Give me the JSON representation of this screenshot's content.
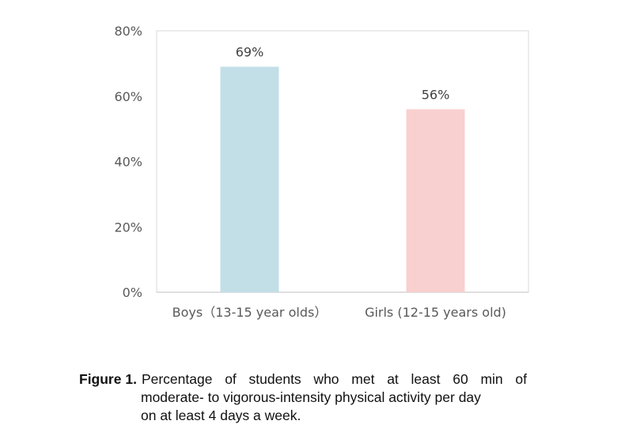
{
  "chart_data": {
    "type": "bar",
    "categories": [
      "Boys（13-15 year olds）",
      "Girls (12-15 years old)"
    ],
    "values": [
      69,
      56
    ],
    "data_labels": [
      "69%",
      "56%"
    ],
    "y_ticks": [
      "0%",
      "20%",
      "40%",
      "60%",
      "80%"
    ],
    "ylim": [
      0,
      80
    ],
    "grid": false,
    "colors": [
      "#c2dfe8",
      "#f8d0cf"
    ]
  },
  "caption": {
    "label": "Figure 1.",
    "line1": "Percentage of students who met at least 60 min of",
    "line2": "moderate- to vigorous-intensity physical activity per day",
    "line3": "on at least 4 days a week."
  }
}
